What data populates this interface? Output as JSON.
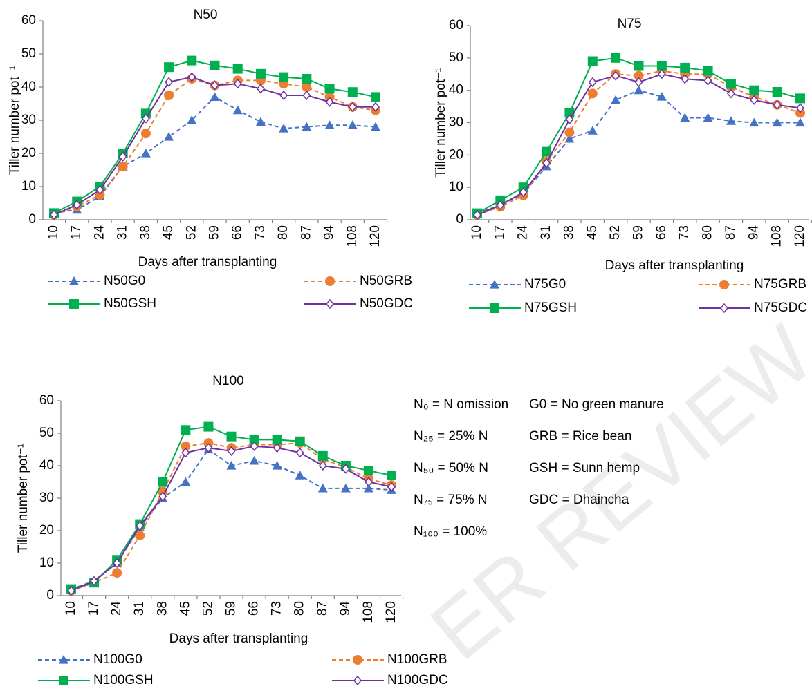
{
  "chart_data": [
    {
      "type": "line",
      "title": "N50",
      "x_label": "Days after transplanting",
      "y_label": "Tiller number pot⁻¹",
      "categories": [
        "10",
        "17",
        "24",
        "31",
        "38",
        "45",
        "52",
        "59",
        "66",
        "73",
        "80",
        "87",
        "94",
        "108",
        "120"
      ],
      "ylim": [
        0,
        60
      ],
      "yticks": [
        0,
        10,
        20,
        30,
        40,
        50,
        60
      ],
      "series": [
        {
          "name": "N50G0",
          "color": "#4472c4",
          "marker": "triangle",
          "dashed": true,
          "values": [
            2,
            3,
            7,
            16,
            20,
            25,
            30,
            37,
            33,
            29.5,
            27.5,
            28,
            28.5,
            28.5,
            28
          ]
        },
        {
          "name": "N50GRB",
          "color": "#ed7d31",
          "marker": "circle",
          "dashed": true,
          "values": [
            1.5,
            4,
            7.5,
            16,
            26,
            37.5,
            42.5,
            40.5,
            42,
            42,
            41,
            40,
            37,
            34,
            33
          ]
        },
        {
          "name": "N50GSH",
          "color": "#00b050",
          "marker": "square",
          "dashed": false,
          "values": [
            2,
            5.5,
            10,
            20,
            32,
            46,
            48,
            46.5,
            45.5,
            44,
            43,
            42.5,
            39.5,
            38.5,
            37
          ]
        },
        {
          "name": "N50GDC",
          "color": "#7030a0",
          "marker": "diamond",
          "dashed": false,
          "values": [
            1.5,
            4.5,
            9,
            19,
            30.5,
            41.5,
            43,
            40.5,
            41,
            39.5,
            37.5,
            37.5,
            35.5,
            34,
            34
          ]
        }
      ]
    },
    {
      "type": "line",
      "title": "N75",
      "x_label": "Days after transplanting",
      "y_label": "Tiller number pot⁻¹",
      "categories": [
        "10",
        "17",
        "24",
        "31",
        "38",
        "45",
        "52",
        "59",
        "66",
        "73",
        "80",
        "87",
        "94",
        "108",
        "120"
      ],
      "ylim": [
        0,
        60
      ],
      "yticks": [
        0,
        10,
        20,
        30,
        40,
        50,
        60
      ],
      "series": [
        {
          "name": "N75G0",
          "color": "#4472c4",
          "marker": "triangle",
          "dashed": true,
          "values": [
            2,
            4.5,
            8,
            16.5,
            25,
            27.5,
            37,
            40,
            38,
            31.5,
            31.5,
            30.5,
            30,
            30,
            30
          ]
        },
        {
          "name": "N75GRB",
          "color": "#ed7d31",
          "marker": "circle",
          "dashed": true,
          "values": [
            1.5,
            4,
            7.5,
            18,
            27,
            39,
            45,
            44.5,
            46,
            45,
            45,
            41,
            38,
            35.5,
            33
          ]
        },
        {
          "name": "N75GSH",
          "color": "#00b050",
          "marker": "square",
          "dashed": false,
          "values": [
            2,
            6,
            10,
            21,
            33,
            49,
            50,
            47.5,
            47.5,
            47,
            46,
            42,
            40,
            39.5,
            37.5
          ]
        },
        {
          "name": "N75GDC",
          "color": "#7030a0",
          "marker": "diamond",
          "dashed": false,
          "values": [
            1.5,
            4.5,
            8.5,
            17.5,
            31,
            42.5,
            44.5,
            42.5,
            45,
            43.5,
            43,
            39,
            37,
            35.5,
            34.5
          ]
        }
      ]
    },
    {
      "type": "line",
      "title": "N100",
      "x_label": "Days after transplanting",
      "y_label": "Tiller number pot⁻¹",
      "categories": [
        "10",
        "17",
        "24",
        "31",
        "38",
        "45",
        "52",
        "59",
        "66",
        "73",
        "80",
        "87",
        "94",
        "108",
        "120"
      ],
      "ylim": [
        0,
        60
      ],
      "yticks": [
        0,
        10,
        20,
        30,
        40,
        50,
        60
      ],
      "series": [
        {
          "name": "N100G0",
          "color": "#4472c4",
          "marker": "triangle",
          "dashed": true,
          "values": [
            2,
            4.5,
            10,
            21,
            30,
            35,
            45,
            40,
            41.5,
            40,
            37,
            33,
            33,
            33,
            32.5
          ]
        },
        {
          "name": "N100GRB",
          "color": "#ed7d31",
          "marker": "circle",
          "dashed": true,
          "values": [
            1.5,
            4,
            7,
            18.5,
            32,
            46,
            47,
            45.5,
            46.5,
            46.5,
            47,
            42,
            39.5,
            36,
            34
          ]
        },
        {
          "name": "N100GSH",
          "color": "#00b050",
          "marker": "square",
          "dashed": false,
          "values": [
            2,
            4,
            11,
            22,
            35,
            51,
            52,
            49,
            48,
            48,
            47.5,
            43,
            40,
            38.5,
            37
          ]
        },
        {
          "name": "N100GDC",
          "color": "#7030a0",
          "marker": "diamond",
          "dashed": false,
          "values": [
            1.5,
            4.5,
            10,
            21.5,
            30.5,
            44,
            45.5,
            44.5,
            46,
            45.5,
            44,
            40,
            39,
            35,
            33.5
          ]
        }
      ]
    }
  ],
  "notes": {
    "n_levels": [
      "N₀ = N omission",
      "N₂₅ = 25% N",
      "N₅₀ = 50% N",
      "N₇₅ = 75% N",
      "N₁₀₀ = 100%"
    ],
    "g_types": [
      "G0 = No green manure",
      "GRB = Rice bean",
      "GSH = Sunn hemp",
      "GDC = Dhaincha"
    ]
  },
  "watermark": "ER REVIEW"
}
